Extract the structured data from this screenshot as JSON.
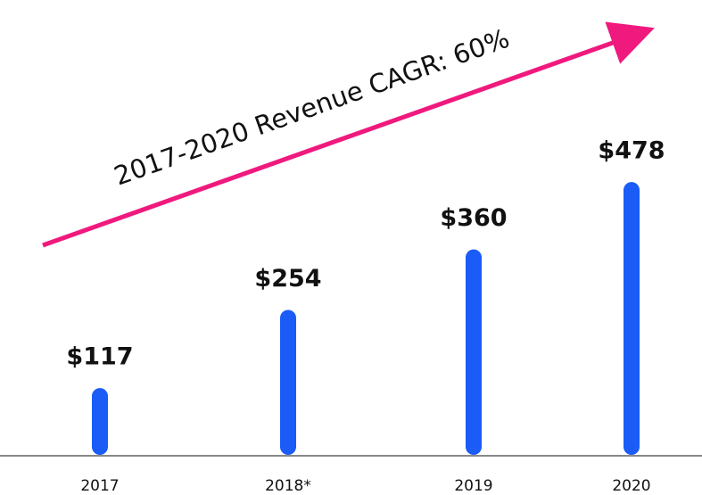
{
  "chart_data": {
    "type": "bar",
    "annotation": "2017-2020 Revenue CAGR: 60%",
    "categories": [
      "2017",
      "2018*",
      "2019",
      "2020"
    ],
    "values": [
      117,
      254,
      360,
      478
    ],
    "value_labels": [
      "$117",
      "$254",
      "$360",
      "$478"
    ],
    "color": "#1a5cf5",
    "arrow_color": "#f0197d",
    "ylim": [
      0,
      750
    ]
  }
}
